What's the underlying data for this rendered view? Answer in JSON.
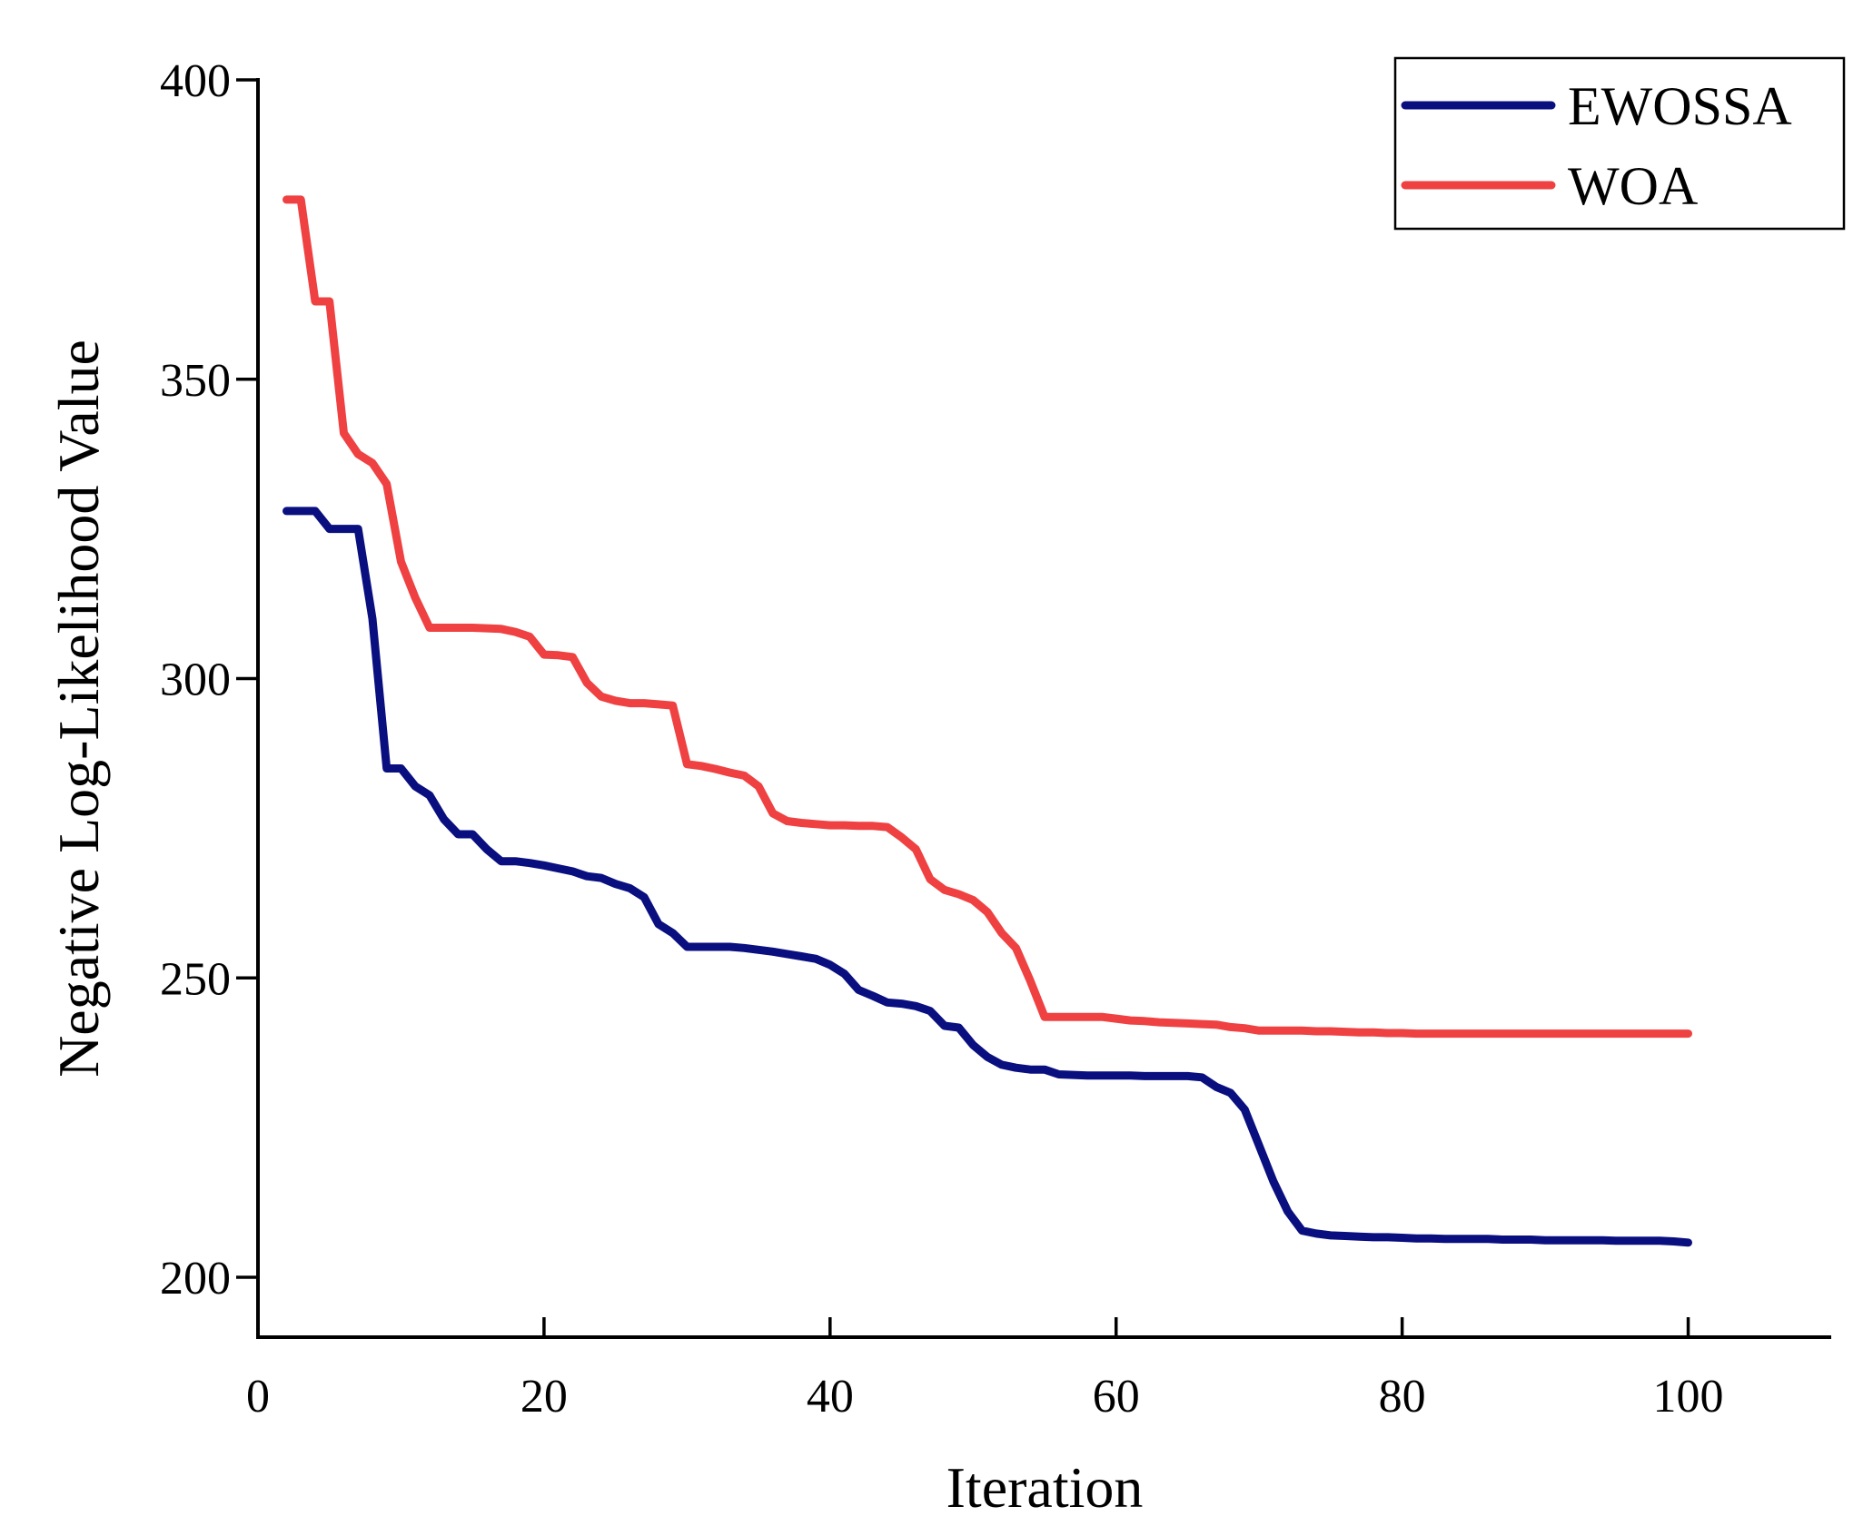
{
  "chart_data": {
    "type": "line",
    "title": "",
    "xlabel": "Iteration",
    "ylabel": "Negative Log-Likelihood Value",
    "xlim": [
      0,
      110
    ],
    "ylim": [
      190,
      400
    ],
    "xticks": [
      0,
      20,
      40,
      60,
      80,
      100
    ],
    "yticks": [
      200,
      250,
      300,
      350,
      400
    ],
    "grid": false,
    "legend_position": "top-right",
    "series": [
      {
        "name": "EWOSSA",
        "color": "#0a0f80",
        "x": [
          2,
          3,
          4,
          5,
          6,
          7,
          8,
          9,
          10,
          11,
          12,
          13,
          14,
          15,
          16,
          17,
          18,
          19,
          20,
          21,
          22,
          23,
          24,
          25,
          26,
          27,
          28,
          29,
          30,
          31,
          32,
          33,
          34,
          35,
          36,
          37,
          38,
          39,
          40,
          41,
          42,
          43,
          44,
          45,
          46,
          47,
          48,
          49,
          50,
          51,
          52,
          53,
          54,
          55,
          56,
          57,
          58,
          59,
          60,
          61,
          62,
          63,
          64,
          65,
          66,
          67,
          68,
          69,
          70,
          71,
          72,
          73,
          74,
          75,
          76,
          77,
          78,
          79,
          80,
          81,
          82,
          83,
          84,
          85,
          86,
          87,
          88,
          89,
          90,
          91,
          92,
          93,
          94,
          95,
          96,
          97,
          98,
          99,
          100
        ],
        "values": [
          328,
          328,
          328,
          325,
          325,
          325,
          310,
          285,
          285,
          282,
          280.5,
          276.5,
          274,
          274,
          271.5,
          269.5,
          269.5,
          269.2,
          268.8,
          268.3,
          267.8,
          267,
          266.7,
          265.7,
          265,
          263.5,
          259,
          257.5,
          255.2,
          255.2,
          255.2,
          255.2,
          255,
          254.7,
          254.4,
          254,
          253.6,
          253.2,
          252.2,
          250.7,
          248,
          247,
          245.9,
          245.7,
          245.3,
          244.5,
          242,
          241.7,
          238.8,
          236.8,
          235.5,
          235,
          234.7,
          234.7,
          233.9,
          233.8,
          233.7,
          233.7,
          233.7,
          233.7,
          233.6,
          233.6,
          233.6,
          233.6,
          233.4,
          231.8,
          230.8,
          228,
          222,
          216,
          211,
          207.8,
          207.3,
          207,
          206.9,
          206.8,
          206.7,
          206.7,
          206.6,
          206.5,
          206.5,
          206.4,
          206.4,
          206.4,
          206.4,
          206.3,
          206.3,
          206.3,
          206.2,
          206.2,
          206.2,
          206.2,
          206.2,
          206.1,
          206.1,
          206.1,
          206.1,
          206,
          205.8
        ]
      },
      {
        "name": "WOA",
        "color": "#ef4141",
        "x": [
          2,
          3,
          4,
          5,
          6,
          7,
          8,
          9,
          10,
          11,
          12,
          13,
          14,
          15,
          16,
          17,
          18,
          19,
          20,
          21,
          22,
          23,
          24,
          25,
          26,
          27,
          28,
          29,
          30,
          31,
          32,
          33,
          34,
          35,
          36,
          37,
          38,
          39,
          40,
          41,
          42,
          43,
          44,
          45,
          46,
          47,
          48,
          49,
          50,
          51,
          52,
          53,
          54,
          55,
          56,
          57,
          58,
          59,
          60,
          61,
          62,
          63,
          64,
          65,
          66,
          67,
          68,
          69,
          70,
          71,
          72,
          73,
          74,
          75,
          76,
          77,
          78,
          79,
          80,
          81,
          82,
          83,
          84,
          85,
          86,
          87,
          88,
          89,
          90,
          91,
          92,
          93,
          94,
          95,
          96,
          97,
          98,
          99,
          100
        ],
        "values": [
          380,
          380,
          363,
          363,
          341,
          337.5,
          336,
          332.5,
          319.5,
          313.5,
          308.5,
          308.5,
          308.5,
          308.5,
          308.4,
          308.3,
          307.8,
          307,
          304,
          303.9,
          303.6,
          299.3,
          297,
          296.3,
          295.9,
          295.9,
          295.7,
          295.5,
          285.7,
          285.4,
          284.9,
          284.3,
          283.8,
          282,
          277.5,
          276.2,
          275.9,
          275.7,
          275.5,
          275.5,
          275.4,
          275.4,
          275.2,
          273.5,
          271.5,
          266.5,
          264.7,
          264,
          263,
          261,
          257.5,
          255,
          249.5,
          243.5,
          243.5,
          243.5,
          243.5,
          243.5,
          243.2,
          242.9,
          242.8,
          242.6,
          242.5,
          242.4,
          242.3,
          242.2,
          241.8,
          241.6,
          241.2,
          241.2,
          241.2,
          241.2,
          241.1,
          241.1,
          241,
          240.9,
          240.9,
          240.8,
          240.8,
          240.7,
          240.7,
          240.7,
          240.7,
          240.7,
          240.7,
          240.7,
          240.7,
          240.7,
          240.7,
          240.7,
          240.7,
          240.7,
          240.7,
          240.7,
          240.7,
          240.7,
          240.7,
          240.7,
          240.7
        ]
      }
    ]
  }
}
